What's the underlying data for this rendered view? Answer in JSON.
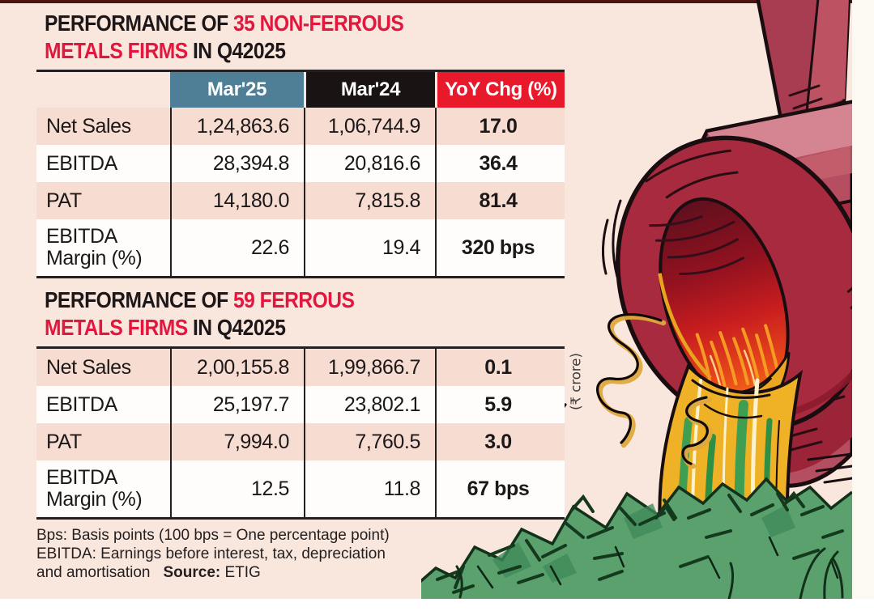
{
  "unit_label": "(₹ crore)",
  "colors": {
    "page_bg": "#f9e7de",
    "row_pink": "#f6dcd1",
    "header_teal": "#4e7f96",
    "header_black": "#191314",
    "header_red": "#e8192b",
    "title_red": "#e3173d",
    "rule_dark": "#241f20",
    "money_green": "#5aa16e",
    "crucible_red": "#a82a3e",
    "molten_gold": "#efb125"
  },
  "header_columns": [
    {
      "label": "Mar'25",
      "key": "mar25",
      "bg": "#4e7f96"
    },
    {
      "label": "Mar'24",
      "key": "mar24",
      "bg": "#191314"
    },
    {
      "label": "YoY Chg (%)",
      "key": "yoy",
      "bg": "#e8192b"
    }
  ],
  "tables": [
    {
      "id": "non-ferrous",
      "show_header": true,
      "title_lines": [
        [
          {
            "text": "PERFORMANCE OF ",
            "red": false
          },
          {
            "text": "35 NON-FERROUS",
            "red": true
          }
        ],
        [
          {
            "text": "METALS FIRMS",
            "red": true
          },
          {
            "text": " IN Q42025",
            "red": false
          }
        ]
      ],
      "rows": [
        {
          "label": "Net Sales",
          "mar25": "1,24,863.6",
          "mar24": "1,06,744.9",
          "yoy": "17.0",
          "tall": false
        },
        {
          "label": "EBITDA",
          "mar25": "28,394.8",
          "mar24": "20,816.6",
          "yoy": "36.4",
          "tall": false
        },
        {
          "label": "PAT",
          "mar25": "14,180.0",
          "mar24": "7,815.8",
          "yoy": "81.4",
          "tall": false
        },
        {
          "label": "EBITDA Margin (%)",
          "mar25": "22.6",
          "mar24": "19.4",
          "yoy": "320 bps",
          "tall": true
        }
      ]
    },
    {
      "id": "ferrous",
      "show_header": false,
      "title_lines": [
        [
          {
            "text": "PERFORMANCE OF ",
            "red": false
          },
          {
            "text": "59 FERROUS",
            "red": true
          }
        ],
        [
          {
            "text": "METALS FIRMS",
            "red": true
          },
          {
            "text": " IN Q42025",
            "red": false
          }
        ]
      ],
      "rows": [
        {
          "label": "Net Sales",
          "mar25": "2,00,155.8",
          "mar24": "1,99,866.7",
          "yoy": "0.1",
          "tall": false
        },
        {
          "label": "EBITDA",
          "mar25": "25,197.7",
          "mar24": "23,802.1",
          "yoy": "5.9",
          "tall": false
        },
        {
          "label": "PAT",
          "mar25": "7,994.0",
          "mar24": "7,760.5",
          "yoy": "3.0",
          "tall": false
        },
        {
          "label": "EBITDA Margin (%)",
          "mar25": "12.5",
          "mar24": "11.8",
          "yoy": "67 bps",
          "tall": true
        }
      ]
    }
  ],
  "footnote": {
    "lines": [
      "Bps: Basis points (100 bps =  One percentage point)",
      "EBITDA: Earnings before interest, tax, depreciation"
    ],
    "line3_text": "and amortisation",
    "source_label": "Source:",
    "source_value": " ETIG"
  },
  "chart_data": [
    {
      "type": "table",
      "title": "PERFORMANCE OF 35 NON-FERROUS METALS FIRMS IN Q42025",
      "unit": "₹ crore",
      "columns": [
        "Mar'25",
        "Mar'24",
        "YoY Chg (%)"
      ],
      "rows": [
        {
          "metric": "Net Sales",
          "mar25": 124863.6,
          "mar24": 106744.9,
          "yoy_chg": "17.0"
        },
        {
          "metric": "EBITDA",
          "mar25": 28394.8,
          "mar24": 20816.6,
          "yoy_chg": "36.4"
        },
        {
          "metric": "PAT",
          "mar25": 14180.0,
          "mar24": 7815.8,
          "yoy_chg": "81.4"
        },
        {
          "metric": "EBITDA Margin (%)",
          "mar25": 22.6,
          "mar24": 19.4,
          "yoy_chg": "320 bps"
        }
      ]
    },
    {
      "type": "table",
      "title": "PERFORMANCE OF 59 FERROUS METALS FIRMS IN Q42025",
      "unit": "₹ crore",
      "columns": [
        "Mar'25",
        "Mar'24",
        "YoY Chg (%)"
      ],
      "rows": [
        {
          "metric": "Net Sales",
          "mar25": 200155.8,
          "mar24": 199866.7,
          "yoy_chg": "0.1"
        },
        {
          "metric": "EBITDA",
          "mar25": 25197.7,
          "mar24": 23802.1,
          "yoy_chg": "5.9"
        },
        {
          "metric": "PAT",
          "mar25": 7994.0,
          "mar24": 7760.5,
          "yoy_chg": "3.0"
        },
        {
          "metric": "EBITDA Margin (%)",
          "mar25": 12.5,
          "mar24": 11.8,
          "yoy_chg": "67 bps"
        }
      ]
    }
  ]
}
